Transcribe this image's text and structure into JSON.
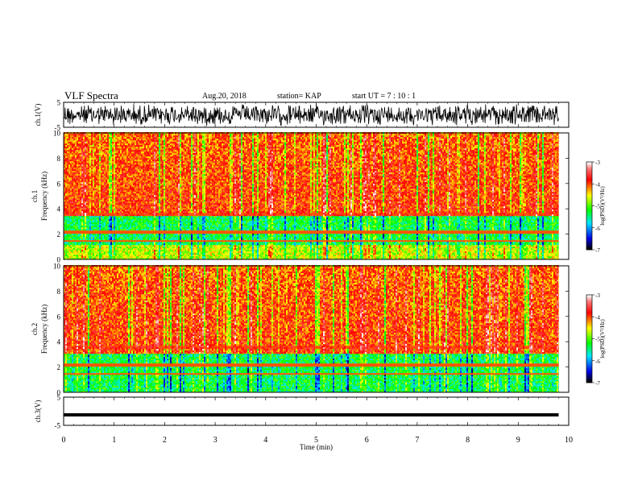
{
  "header": {
    "title": "VLF Spectra",
    "date": "Aug.20, 2018",
    "station": "station= KAP",
    "start_ut": "start  UT  =   7 : 10 : 1"
  },
  "chart_data": [
    {
      "type": "line",
      "panel": "ch1-waveform",
      "ylabel": "ch.1(V)",
      "ylim": [
        -5,
        5
      ],
      "yticks": [
        "5",
        "-5"
      ],
      "xlim": [
        0,
        10
      ],
      "x_data_end": 9.8,
      "description_of_signal": "noise waveform, amplitude ±5 V"
    },
    {
      "type": "heatmap",
      "panel": "ch1-spectrogram",
      "ylabel": "ch.1\nFrequency (kHz)",
      "ylim": [
        0,
        10
      ],
      "yticks": [
        "0",
        "2",
        "4",
        "6",
        "8",
        "10"
      ],
      "xlim": [
        0,
        10
      ],
      "x_data_end": 9.8,
      "z_range": [
        -7,
        -3
      ],
      "low_band_khz": [
        1.2,
        3.4
      ],
      "colorbar": {
        "label": "log(PSD)(V²/Hz)",
        "ticks": [
          "-3",
          "-4",
          "-5",
          "-6",
          "-7"
        ]
      }
    },
    {
      "type": "heatmap",
      "panel": "ch2-spectrogram",
      "ylabel": "ch.2\nFrequency (kHz)",
      "ylim": [
        0,
        10
      ],
      "yticks": [
        "0",
        "2",
        "4",
        "6",
        "8",
        "10"
      ],
      "xlim": [
        0,
        10
      ],
      "x_data_end": 9.8,
      "z_range": [
        -7,
        -3
      ],
      "low_band_khz": [
        0,
        3.0
      ],
      "colorbar": {
        "label": "log(PSD)(V²/Hz)",
        "ticks": [
          "-3",
          "-4",
          "-5",
          "-6",
          "-7"
        ]
      }
    },
    {
      "type": "line",
      "panel": "ch3-waveform",
      "ylabel": "ch.3(V)",
      "ylim": [
        -5,
        5
      ],
      "yticks": [
        "5",
        "-5"
      ],
      "xlim": [
        0,
        10
      ],
      "x_data_end": 9.8,
      "constant_value": -1.3
    }
  ],
  "xaxis": {
    "label": "Time  (min)",
    "ticks": [
      "0",
      "1",
      "2",
      "3",
      "4",
      "5",
      "6",
      "7",
      "8",
      "9",
      "10"
    ]
  },
  "colors": {
    "palette": [
      "#000000",
      "#0000ff",
      "#00ffff",
      "#00ff00",
      "#ffff00",
      "#ff0000",
      "#ffffff"
    ]
  }
}
